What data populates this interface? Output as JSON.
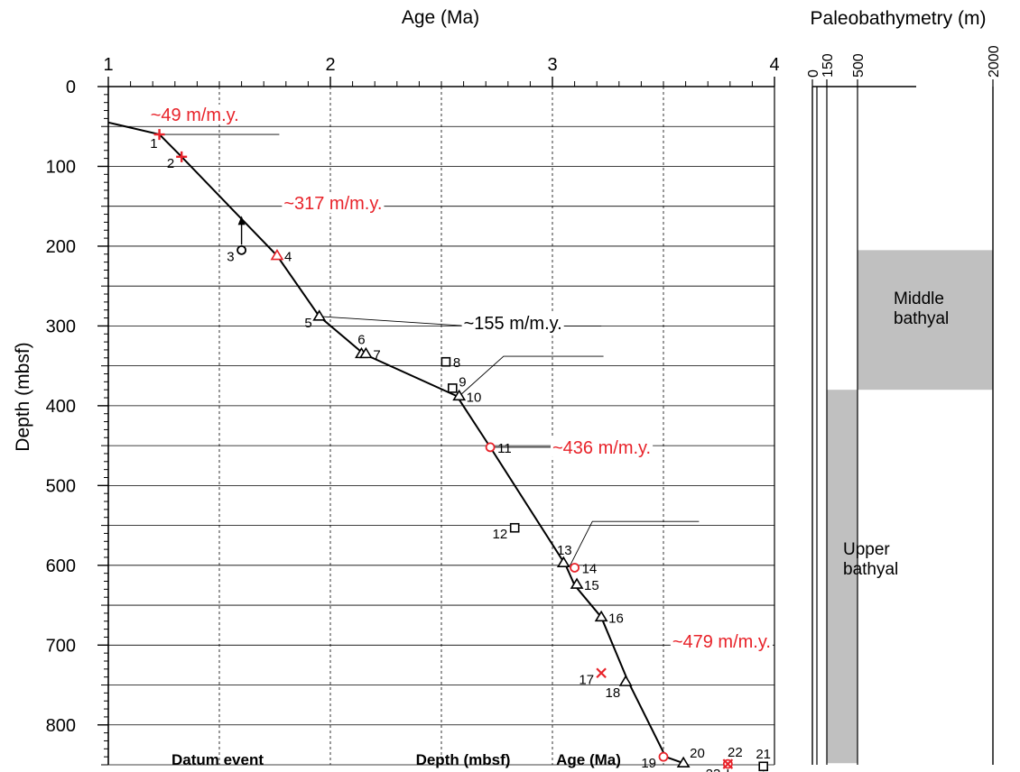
{
  "chart_data": [
    {
      "type": "scatter",
      "title": "Age (Ma)",
      "xlabel": "Age (Ma)",
      "ylabel": "Depth (mbsf)",
      "x_ticks": [
        1,
        2,
        3,
        4
      ],
      "y_ticks": [
        0,
        100,
        200,
        300,
        400,
        500,
        600,
        700,
        800
      ],
      "xlim": [
        1,
        4
      ],
      "ylim": [
        850,
        0
      ],
      "y_reversed": true,
      "grid": "dashed vertical, solid horizontal",
      "footer_labels": [
        "Datum event",
        "Depth (mbsf)",
        "Age (Ma)"
      ],
      "colors": {
        "red": "#e8232a",
        "black": "#000000",
        "grid": "#000000"
      },
      "age_depth_curve": [
        {
          "x": 1.0,
          "y": 45
        },
        {
          "x": 1.23,
          "y": 60
        },
        {
          "x": 1.33,
          "y": 88
        },
        {
          "x": 1.76,
          "y": 212
        },
        {
          "x": 1.95,
          "y": 288
        },
        {
          "x": 2.15,
          "y": 335
        },
        {
          "x": 2.57,
          "y": 388
        },
        {
          "x": 2.72,
          "y": 452
        },
        {
          "x": 3.06,
          "y": 600
        },
        {
          "x": 3.1,
          "y": 625
        },
        {
          "x": 3.22,
          "y": 665
        },
        {
          "x": 3.34,
          "y": 745
        },
        {
          "x": 3.51,
          "y": 840
        },
        {
          "x": 3.59,
          "y": 848
        }
      ],
      "datums": [
        {
          "id": "1",
          "x": 1.23,
          "y": 60,
          "marker": "plus",
          "color": "#e8232a",
          "label_side": "left"
        },
        {
          "id": "2",
          "x": 1.33,
          "y": 88,
          "marker": "plus",
          "color": "#e8232a",
          "label_side": "left"
        },
        {
          "id": "3",
          "x": 1.6,
          "y": 205,
          "marker": "circle",
          "color": "#000000",
          "label_side": "left",
          "arrow": "up"
        },
        {
          "id": "4",
          "x": 1.76,
          "y": 212,
          "marker": "triangle",
          "color": "#e8232a",
          "label_side": "right"
        },
        {
          "id": "5",
          "x": 1.95,
          "y": 288,
          "marker": "triangle",
          "color": "#000000",
          "label_side": "left"
        },
        {
          "id": "6",
          "x": 2.14,
          "y": 335,
          "marker": "triangle",
          "color": "#000000",
          "label_side": "above"
        },
        {
          "id": "7",
          "x": 2.16,
          "y": 335,
          "marker": "triangle",
          "color": "#000000",
          "label_side": "right"
        },
        {
          "id": "8",
          "x": 2.52,
          "y": 345,
          "marker": "square",
          "color": "#000000",
          "label_side": "right"
        },
        {
          "id": "9",
          "x": 2.55,
          "y": 378,
          "marker": "square",
          "color": "#000000",
          "label_side": "right_up"
        },
        {
          "id": "10",
          "x": 2.58,
          "y": 388,
          "marker": "triangle",
          "color": "#000000",
          "label_side": "right"
        },
        {
          "id": "11",
          "x": 2.72,
          "y": 452,
          "marker": "circle",
          "color": "#e8232a",
          "label_side": "right"
        },
        {
          "id": "12",
          "x": 2.83,
          "y": 553,
          "marker": "square",
          "color": "#000000",
          "label_side": "left"
        },
        {
          "id": "13",
          "x": 3.05,
          "y": 597,
          "marker": "triangle",
          "color": "#000000",
          "label_side": "above"
        },
        {
          "id": "14",
          "x": 3.1,
          "y": 603,
          "marker": "circle",
          "color": "#e8232a",
          "label_side": "right"
        },
        {
          "id": "15",
          "x": 3.11,
          "y": 624,
          "marker": "triangle",
          "color": "#000000",
          "label_side": "right"
        },
        {
          "id": "16",
          "x": 3.22,
          "y": 665,
          "marker": "triangle",
          "color": "#000000",
          "label_side": "right"
        },
        {
          "id": "17",
          "x": 3.22,
          "y": 735,
          "marker": "cross",
          "color": "#e8232a",
          "label_side": "left"
        },
        {
          "id": "18",
          "x": 3.33,
          "y": 746,
          "marker": "triangle",
          "color": "#000000",
          "label_side": "below_left"
        },
        {
          "id": "19",
          "x": 3.5,
          "y": 840,
          "marker": "circle",
          "color": "#e8232a",
          "label_side": "left"
        },
        {
          "id": "20",
          "x": 3.59,
          "y": 848,
          "marker": "triangle",
          "color": "#000000",
          "label_side": "above_right"
        },
        {
          "id": "21",
          "x": 3.95,
          "y": 852,
          "marker": "square",
          "color": "#000000",
          "label_side": "above",
          "arrow": "down"
        },
        {
          "id": "22",
          "x": 3.79,
          "y": 849,
          "marker": "circle",
          "color": "#e8232a",
          "label_side": "above",
          "arrow": "down"
        },
        {
          "id": "23",
          "x": 3.79,
          "y": 849,
          "marker": "cross",
          "color": "#e8232a",
          "label_side": "below_left"
        }
      ],
      "rate_annotations": [
        {
          "text": "~49 m/m.y.",
          "color": "#e8232a",
          "x": 1.19,
          "y": 35,
          "leader": {
            "x1": 1.23,
            "x2": 1.77,
            "y": 60
          }
        },
        {
          "text": "~317 m/m.y.",
          "color": "#e8232a",
          "x": 1.79,
          "y": 146,
          "leader": null
        },
        {
          "text": "~155 m/m.y.",
          "color": "#000000",
          "x": 2.6,
          "y": 296,
          "leader": {
            "x1": 1.95,
            "x2": 2.61,
            "y": 288,
            "x3": 3.22,
            "y3": 300
          }
        },
        {
          "text": "~436 m/m.y.",
          "color": "#e8232a",
          "x": 3.0,
          "y": 452,
          "leader": {
            "x1": 2.72,
            "x2": 3.03,
            "y": 452
          }
        },
        {
          "text": "~479 m/m.y.",
          "color": "#e8232a",
          "x": 3.54,
          "y": 695,
          "leader": null
        }
      ],
      "extra_leaders": [
        {
          "x1": 2.58,
          "y1": 388,
          "x2": 2.78,
          "y2": 338,
          "x3": 3.23,
          "y3": 338
        },
        {
          "x1": 3.08,
          "y1": 600,
          "x2": 3.18,
          "y2": 545,
          "x3": 3.66,
          "y3": 545
        }
      ]
    },
    {
      "type": "area",
      "title": "Paleobathymetry (m)",
      "x_ticks": [
        "0",
        "150",
        "500",
        "2000"
      ],
      "ylim": [
        850,
        0
      ],
      "zones": [
        {
          "label": "Middle bathyal",
          "label_lines": [
            "Middle",
            "bathyal"
          ],
          "from_m": 500,
          "to_m": 2000,
          "top": 205,
          "bottom": 380
        },
        {
          "label": "Upper bathyal",
          "label_lines": [
            "Upper",
            "bathyal"
          ],
          "from_m": 150,
          "to_m": 500,
          "top": 380,
          "bottom": 848
        }
      ],
      "fill_color": "#c0c0c0"
    }
  ]
}
